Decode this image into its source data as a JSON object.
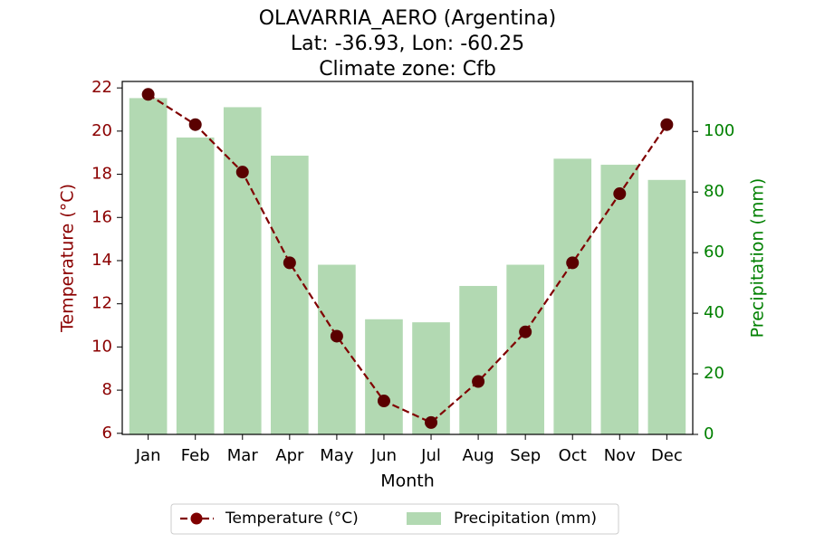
{
  "chart_data": {
    "type": "bar+line",
    "title": [
      "OLAVARRIA_AERO (Argentina)",
      "Lat: -36.93, Lon: -60.25",
      "Climate zone: Cfb"
    ],
    "xlabel": "Month",
    "categories": [
      "Jan",
      "Feb",
      "Mar",
      "Apr",
      "May",
      "Jun",
      "Jul",
      "Aug",
      "Sep",
      "Oct",
      "Nov",
      "Dec"
    ],
    "series": [
      {
        "name": "Temperature (°C)",
        "type": "line",
        "axis": "left",
        "color": "#800000",
        "values": [
          21.7,
          20.3,
          18.1,
          13.9,
          10.5,
          7.5,
          6.5,
          8.4,
          10.7,
          13.9,
          17.1,
          20.3
        ]
      },
      {
        "name": "Precipitation (mm)",
        "type": "bar",
        "axis": "right",
        "color": "#b2d9b2",
        "values": [
          111,
          98,
          108,
          92,
          56,
          38,
          37,
          49,
          56,
          91,
          89,
          84
        ]
      }
    ],
    "ylabel_left": "Temperature (°C)",
    "ylabel_right": "Precipitation (mm)",
    "ylim_left": [
      5.95,
      22.3
    ],
    "yticks_left": [
      6,
      8,
      10,
      12,
      14,
      16,
      18,
      20,
      22
    ],
    "ylim_right": [
      0,
      116.5
    ],
    "yticks_right": [
      0,
      20,
      40,
      60,
      80,
      100
    ],
    "left_axis_color": "#8b0000",
    "right_axis_color": "#008000",
    "legend_position": "bottom-center",
    "grid": false
  }
}
